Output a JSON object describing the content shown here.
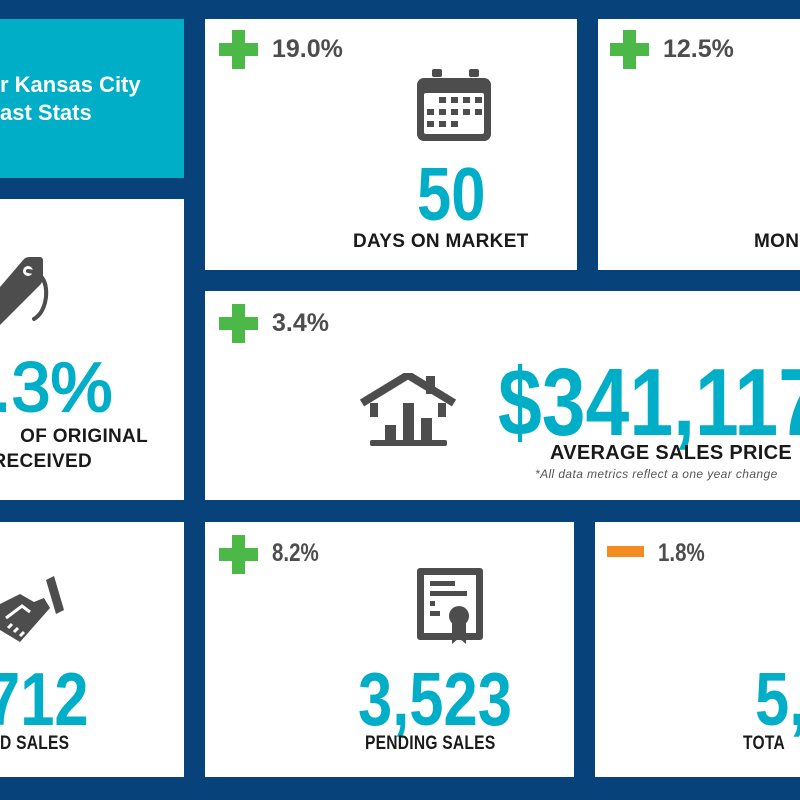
{
  "title": {
    "line1": "r Kansas City",
    "line2": "ast Stats"
  },
  "colors": {
    "background": "#08427a",
    "title_panel": "#00aec7",
    "accent": "#00aec7",
    "increase": "#4cb848",
    "decrease": "#f38b20",
    "icon": "#4d4d4d"
  },
  "stats": {
    "days_on_market": {
      "change": "19.0%",
      "direction": "up",
      "value": "50",
      "label": "DAYS ON MARKET",
      "icon": "calendar-icon"
    },
    "months": {
      "change": "12.5%",
      "direction": "up",
      "label": "MON"
    },
    "pct_original": {
      "value": ".3%",
      "label_line1": "OF ORIGINAL",
      "label_line2": "RECEIVED",
      "icon": "price-tag-icon"
    },
    "avg_price": {
      "change": "3.4%",
      "direction": "up",
      "value": "$341,117",
      "label": "AVERAGE SALES PRICE",
      "footnote": "*All data metrics reflect a one year change",
      "icon": "house-chart-icon"
    },
    "closed_sales": {
      "value": "712",
      "label": "D SALES",
      "icon": "handshake-icon"
    },
    "pending_sales": {
      "change": "8.2%",
      "direction": "up",
      "value": "3,523",
      "label": "PENDING SALES",
      "icon": "certificate-icon"
    },
    "total": {
      "change": "1.8%",
      "direction": "down",
      "value": "5,",
      "label": "TOTA"
    }
  }
}
